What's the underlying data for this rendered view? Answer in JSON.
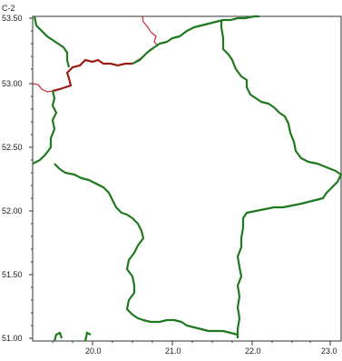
{
  "map": {
    "corner_label": "C-2",
    "x_axis": {
      "ticks": [
        "20.0",
        "21.0",
        "22.0",
        "23.0"
      ],
      "range": [
        19.35,
        23.1
      ]
    },
    "y_axis": {
      "ticks": [
        "53.50",
        "53.00",
        "52.50",
        "52.00",
        "51.50",
        "51.00"
      ],
      "range": [
        51.0,
        53.5
      ]
    },
    "colors": {
      "boundary_primary": "#1f7a1f",
      "boundary_secondary_red": "#c8283a",
      "boundary_secondary_darkred": "#9b1c14",
      "axis": "#333333",
      "background": "#ffffff"
    }
  }
}
